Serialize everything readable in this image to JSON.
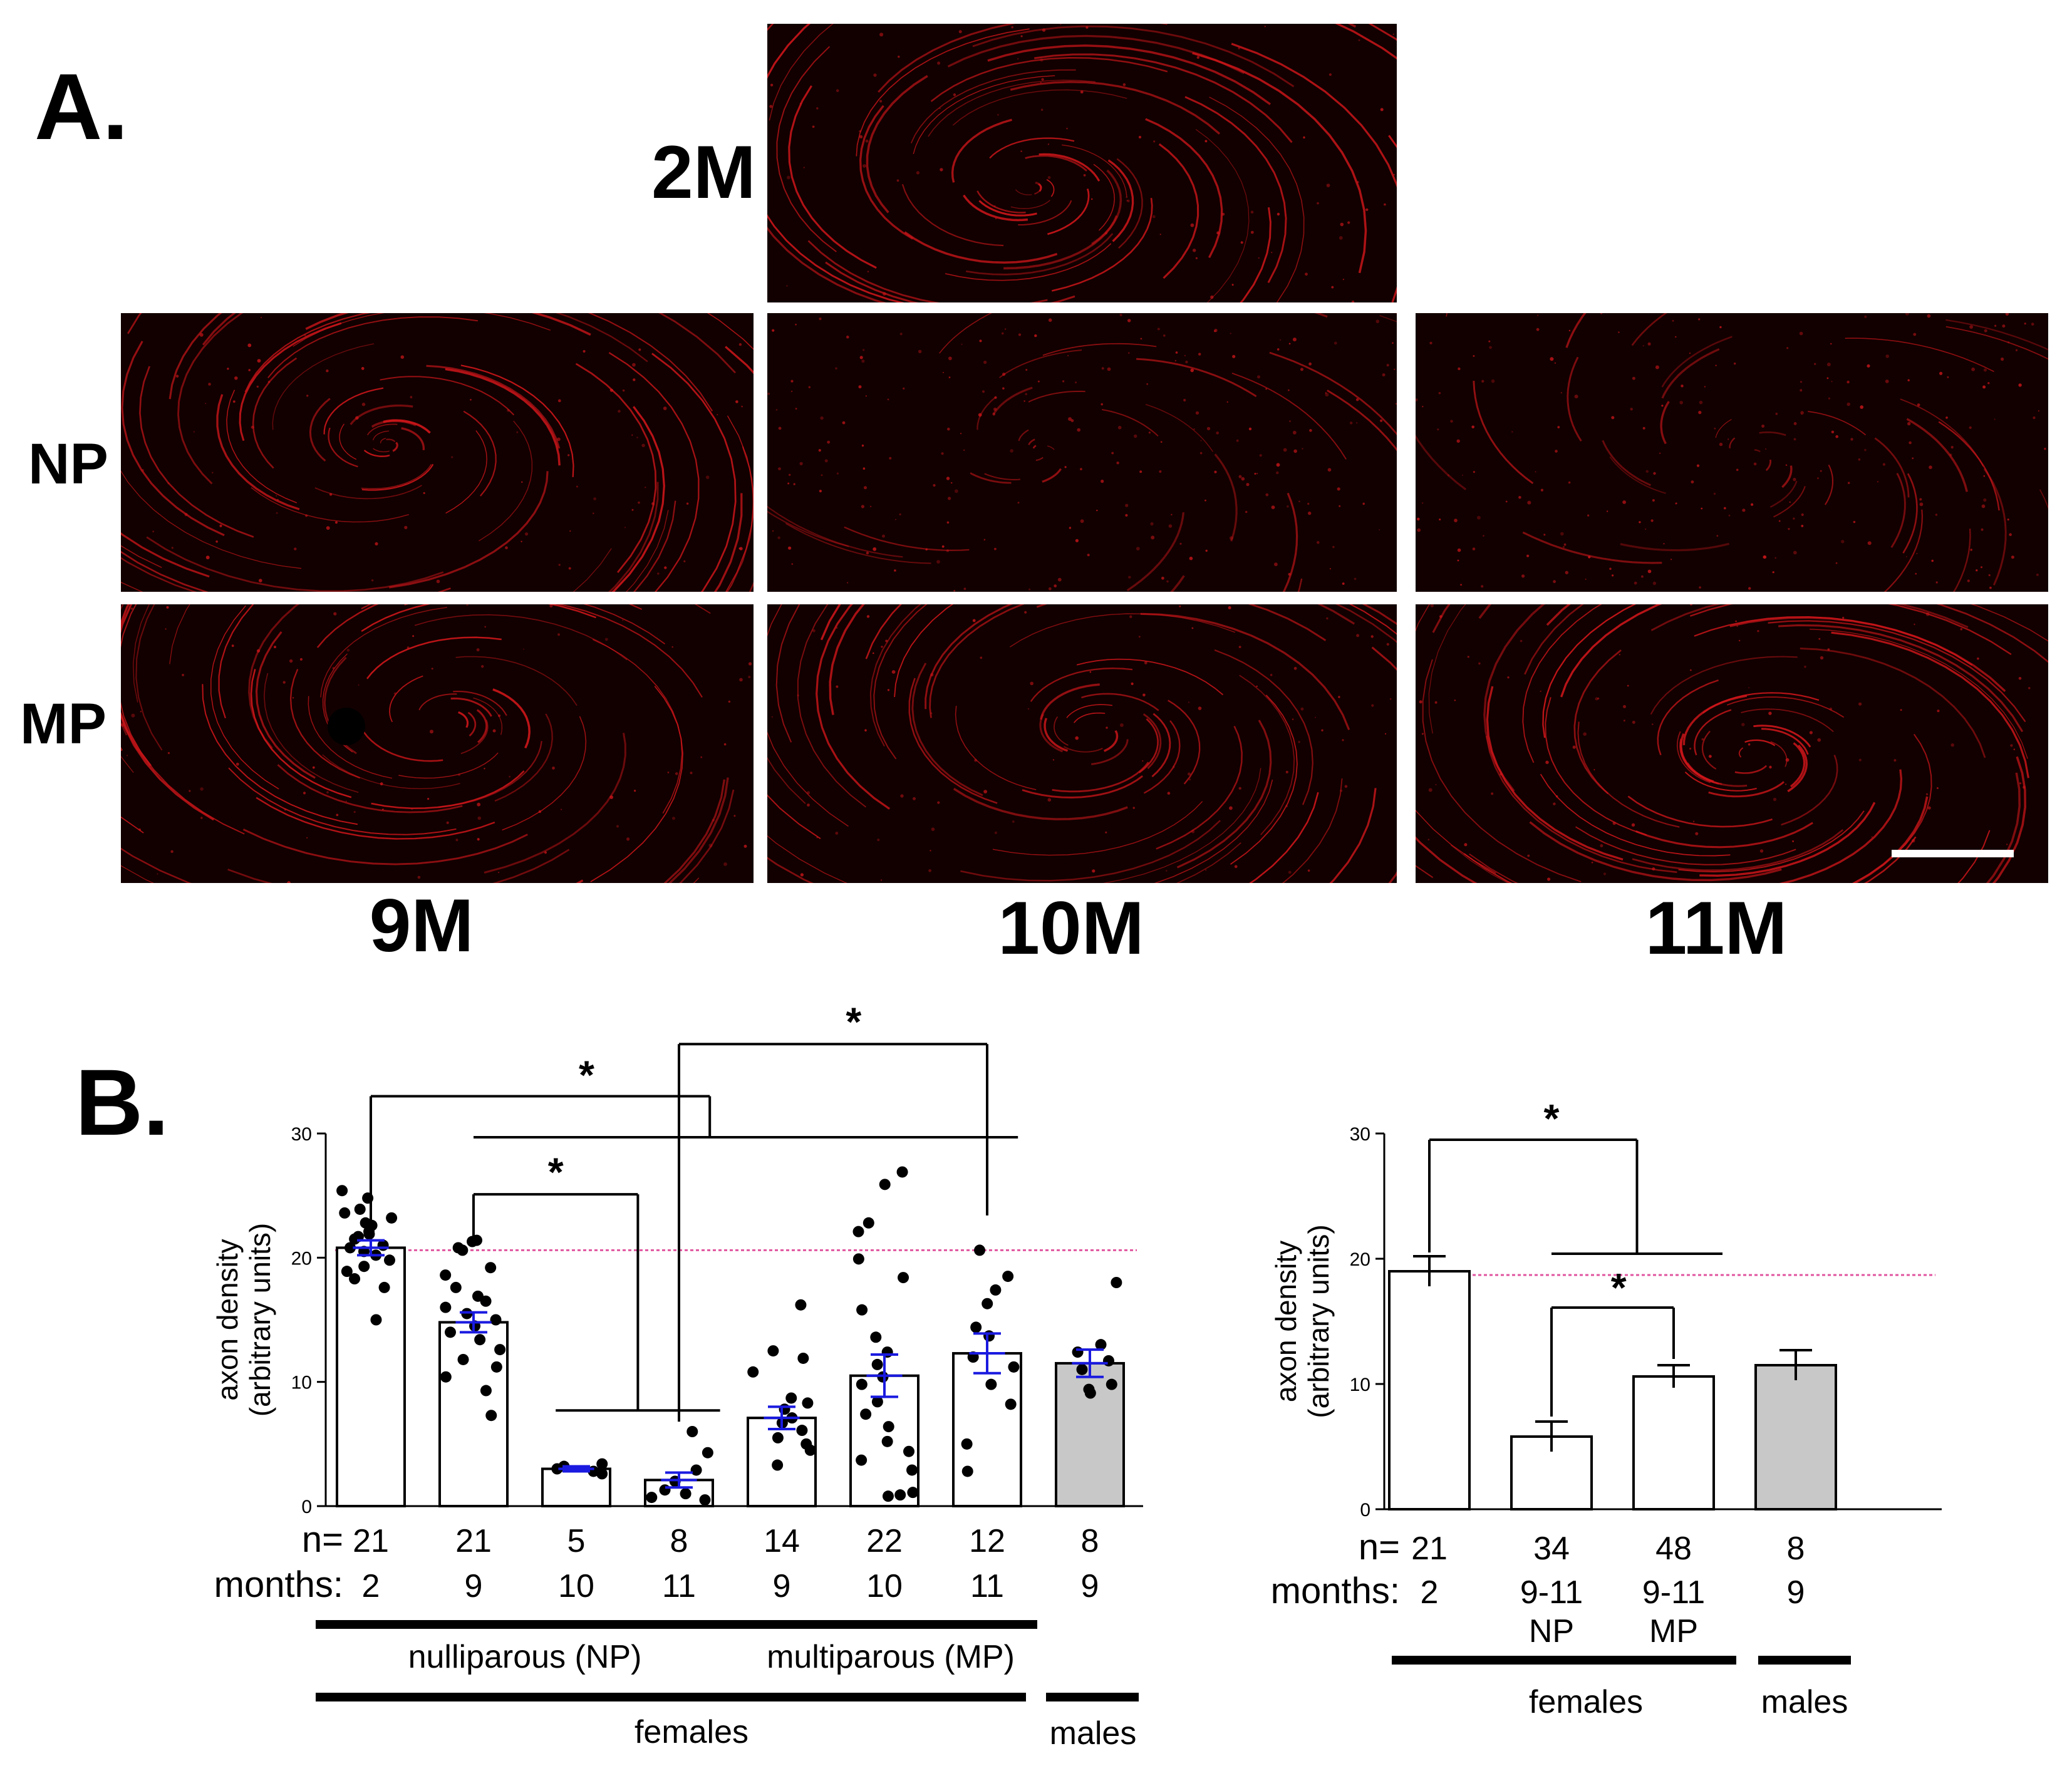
{
  "panel_a": {
    "letter": "A.",
    "row_labels": {
      "np": "NP",
      "mp": "MP"
    },
    "top_label": "2M",
    "col_labels": [
      "9M",
      "10M",
      "11M"
    ]
  },
  "panel_b": {
    "letter": "B."
  },
  "colors": {
    "micrograph": "#d0161a",
    "mean_marker": "#1a1ae0",
    "reference_line": "#e0559f",
    "male_bar": "#c8c8c8"
  },
  "chart_data": [
    {
      "type": "bar",
      "ylabel": [
        "axon density",
        "(arbitrary units)"
      ],
      "ylim": [
        0,
        30
      ],
      "yticks": [
        0,
        10,
        20,
        30
      ],
      "reference_line": 20.6,
      "n_label": "n=",
      "months_label": "months:",
      "categories": [
        {
          "n": "21",
          "months": "2",
          "mean": 20.8,
          "sem": 0.6,
          "fill": "white",
          "points": [
            25.4,
            24.8,
            23.9,
            23.6,
            23.2,
            22.8,
            22.6,
            22.1,
            21.9,
            21.7,
            21.5,
            21.0,
            20.8,
            20.5,
            20.2,
            19.8,
            19.3,
            18.9,
            18.3,
            17.6,
            15.0
          ]
        },
        {
          "n": "21",
          "months": "9",
          "mean": 14.8,
          "sem": 0.8,
          "fill": "white",
          "points": [
            21.4,
            21.3,
            20.8,
            20.6,
            19.2,
            18.6,
            17.6,
            16.9,
            16.5,
            16.0,
            15.5,
            15.0,
            14.5,
            14.0,
            13.4,
            12.6,
            11.8,
            11.2,
            10.4,
            9.3,
            7.3
          ]
        },
        {
          "n": "5",
          "months": "10",
          "mean": 3.0,
          "sem": 0.2,
          "fill": "white",
          "points": [
            3.4,
            3.2,
            3.0,
            2.8,
            2.6
          ]
        },
        {
          "n": "8",
          "months": "11",
          "mean": 2.1,
          "sem": 0.6,
          "fill": "white",
          "points": [
            6.0,
            4.3,
            2.9,
            2.0,
            1.3,
            1.0,
            0.7,
            0.5
          ]
        },
        {
          "n": "14",
          "months": "9",
          "mean": 7.1,
          "sem": 0.9,
          "fill": "white",
          "points": [
            16.2,
            12.5,
            11.9,
            10.8,
            8.7,
            8.3,
            7.8,
            7.1,
            6.7,
            6.1,
            5.5,
            5.0,
            4.5,
            3.3
          ]
        },
        {
          "n": "22",
          "months": "10",
          "mean": 10.5,
          "sem": 1.7,
          "fill": "white",
          "points": [
            26.9,
            25.9,
            22.8,
            22.1,
            19.9,
            18.4,
            15.8,
            13.6,
            12.4,
            11.4,
            10.4,
            9.8,
            8.4,
            7.4,
            6.4,
            5.2,
            4.4,
            3.7,
            2.9,
            1.1,
            0.9,
            0.8
          ]
        },
        {
          "n": "12",
          "months": "11",
          "mean": 12.3,
          "sem": 1.6,
          "fill": "white",
          "points": [
            20.6,
            18.5,
            17.4,
            16.3,
            14.4,
            13.7,
            12.0,
            11.2,
            9.8,
            8.2,
            5.0,
            2.8
          ]
        },
        {
          "n": "8",
          "months": "9",
          "mean": 11.5,
          "sem": 1.1,
          "fill": "gray",
          "points": [
            18.0,
            13.0,
            12.4,
            11.7,
            11.0,
            9.8,
            9.4,
            9.1
          ]
        }
      ],
      "group_labels": [
        "nulliparous (NP)",
        "multiparous (MP)"
      ],
      "sex_labels": [
        "females",
        "males"
      ],
      "significance": [
        "*",
        "*",
        "*"
      ]
    },
    {
      "type": "bar",
      "ylabel": [
        "axon density",
        "(arbitrary units)"
      ],
      "ylim": [
        0,
        30
      ],
      "yticks": [
        0,
        10,
        20,
        30
      ],
      "reference_line": 18.7,
      "n_label": "n=",
      "months_label": "months:",
      "categories": [
        {
          "n": "21",
          "months": "2",
          "sub": "",
          "mean": 19.0,
          "sem": 1.2,
          "fill": "white"
        },
        {
          "n": "34",
          "months": "9-11",
          "sub": "NP",
          "mean": 5.8,
          "sem": 1.2,
          "fill": "white"
        },
        {
          "n": "48",
          "months": "9-11",
          "sub": "MP",
          "mean": 10.6,
          "sem": 0.9,
          "fill": "white"
        },
        {
          "n": "8",
          "months": "9",
          "sub": "",
          "mean": 11.5,
          "sem": 1.2,
          "fill": "gray"
        }
      ],
      "sex_labels": [
        "females",
        "males"
      ],
      "significance": [
        "*",
        "*"
      ]
    }
  ]
}
